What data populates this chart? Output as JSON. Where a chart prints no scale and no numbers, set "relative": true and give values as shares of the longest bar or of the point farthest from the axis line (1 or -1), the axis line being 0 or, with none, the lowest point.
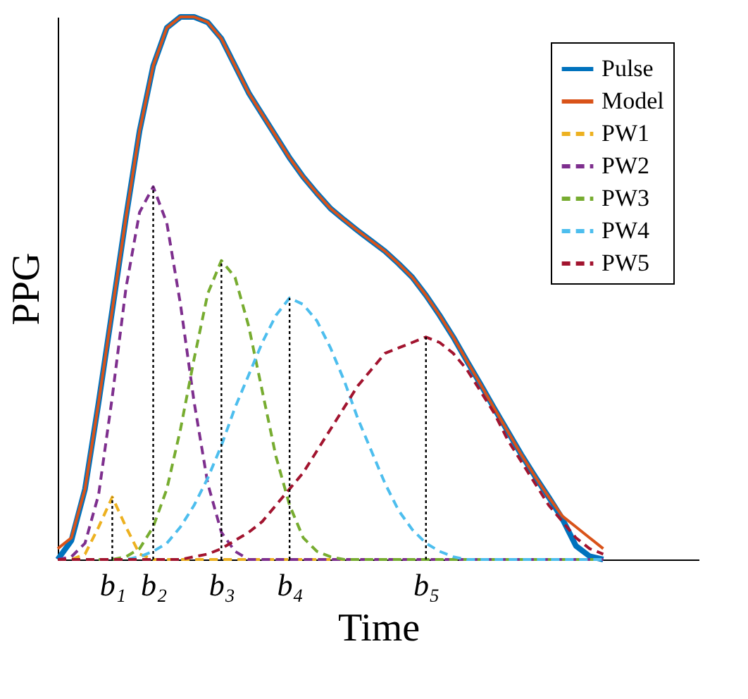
{
  "chart_data": {
    "type": "line",
    "xlabel": "Time",
    "ylabel": "PPG",
    "relative": true,
    "legend": "top right",
    "categories": [
      null,
      null,
      null,
      null,
      "b₁",
      null,
      null,
      "b₂",
      null,
      null,
      null,
      null,
      "b₃",
      null,
      null,
      null,
      null,
      "b₄",
      null,
      null,
      null,
      null,
      null,
      null,
      null,
      null,
      null,
      "b₅",
      null,
      null,
      null,
      null,
      null,
      null,
      null,
      null,
      null,
      null,
      null,
      null,
      null,
      null,
      null,
      null,
      null,
      null,
      null,
      null
    ],
    "series": [
      {
        "name": "Pulse",
        "color": "#0072bd",
        "line_style": "solid",
        "values": [
          0,
          0.035,
          0.13,
          0.29,
          0.46,
          0.63,
          0.79,
          0.91,
          0.98,
          1,
          1,
          0.99,
          0.96,
          0.91,
          0.86,
          0.82,
          0.78,
          0.74,
          0.705,
          0.675,
          0.647,
          0.626,
          0.606,
          0.587,
          0.568,
          0.545,
          0.52,
          0.487,
          0.45,
          0.41,
          0.366,
          0.323,
          0.279,
          0.236,
          0.193,
          0.153,
          0.115,
          0.075,
          0.025,
          0.006,
          0,
          null,
          null,
          null,
          null,
          null,
          null,
          null
        ]
      },
      {
        "name": "Model",
        "color": "#d95319",
        "line_style": "solid",
        "values": [
          0.02,
          0.04,
          0.13,
          0.29,
          0.46,
          0.63,
          0.79,
          0.91,
          0.98,
          1,
          1,
          0.99,
          0.96,
          0.91,
          0.86,
          0.82,
          0.78,
          0.74,
          0.705,
          0.675,
          0.647,
          0.626,
          0.606,
          0.587,
          0.568,
          0.545,
          0.52,
          0.487,
          0.45,
          0.41,
          0.366,
          0.323,
          0.279,
          0.236,
          0.193,
          0.153,
          0.115,
          0.08,
          0.06,
          0.04,
          0.02,
          null,
          null,
          null,
          null,
          null,
          null,
          null
        ]
      },
      {
        "name": "PW1",
        "color": "#edb120",
        "line_style": "dashed",
        "values": [
          0,
          0,
          0.01,
          0.06,
          0.115,
          0.06,
          0.01,
          0,
          0,
          0,
          0,
          0,
          0,
          0,
          0,
          0,
          0,
          0,
          0,
          0,
          0,
          0,
          0,
          0,
          null,
          null,
          null,
          null,
          null,
          null,
          null,
          null,
          null,
          null,
          null,
          null,
          null,
          null,
          null,
          null,
          null,
          null,
          null,
          null,
          null,
          null,
          null,
          null
        ]
      },
      {
        "name": "PW2",
        "color": "#7e2f8e",
        "line_style": "dashed",
        "values": [
          0,
          0.005,
          0.03,
          0.12,
          0.3,
          0.5,
          0.64,
          0.687,
          0.62,
          0.47,
          0.29,
          0.14,
          0.05,
          0.015,
          0,
          0,
          0,
          0,
          0,
          0,
          0,
          0,
          0,
          0,
          0,
          0,
          0,
          0,
          0,
          0,
          0,
          0,
          0,
          0,
          0,
          0,
          0,
          0,
          0,
          0,
          0,
          null,
          null,
          null,
          null,
          null,
          null,
          null
        ]
      },
      {
        "name": "PW3",
        "color": "#77ac30",
        "line_style": "dashed",
        "values": [
          null,
          null,
          null,
          0,
          0,
          0.005,
          0.02,
          0.06,
          0.13,
          0.24,
          0.37,
          0.49,
          0.551,
          0.52,
          0.43,
          0.31,
          0.19,
          0.1,
          0.04,
          0.015,
          0.005,
          0,
          0,
          0,
          0,
          0,
          0,
          0,
          0,
          0,
          0,
          0,
          0,
          0,
          0,
          0,
          0,
          0,
          0,
          0,
          0,
          null,
          null,
          null,
          null,
          null,
          null,
          null
        ]
      },
      {
        "name": "PW4",
        "color": "#4dbeee",
        "line_style": "dashed",
        "values": [
          0,
          0,
          0,
          0,
          0,
          0,
          0.005,
          0.015,
          0.03,
          0.06,
          0.1,
          0.15,
          0.21,
          0.28,
          0.34,
          0.4,
          0.45,
          0.482,
          0.47,
          0.44,
          0.39,
          0.33,
          0.26,
          0.2,
          0.14,
          0.09,
          0.055,
          0.03,
          0.015,
          0.005,
          0,
          0,
          0,
          0,
          0,
          0,
          0,
          0,
          0,
          0,
          0,
          null,
          null,
          null,
          null,
          null,
          null,
          null
        ]
      },
      {
        "name": "PW5",
        "color": "#a2142f",
        "line_style": "dashed",
        "values": [
          0,
          0,
          0,
          0,
          0,
          0,
          0,
          0,
          0,
          0,
          0.005,
          0.01,
          0.02,
          0.035,
          0.05,
          0.07,
          0.1,
          0.13,
          0.16,
          0.2,
          0.24,
          0.28,
          0.32,
          0.35,
          0.38,
          0.39,
          0.4,
          0.41,
          0.4,
          0.38,
          0.35,
          0.31,
          0.27,
          0.22,
          0.18,
          0.14,
          0.1,
          0.07,
          0.04,
          0.02,
          0.01,
          null,
          null,
          null,
          null,
          null,
          null,
          null
        ]
      }
    ],
    "ref_lines": [
      {
        "axis": "x",
        "value": "b₁",
        "color": "#000000",
        "line_style": "dotted"
      },
      {
        "axis": "x",
        "value": "b₂",
        "color": "#000000",
        "line_style": "dotted"
      },
      {
        "axis": "x",
        "value": "b₃",
        "color": "#000000",
        "line_style": "dotted"
      },
      {
        "axis": "x",
        "value": "b₄",
        "color": "#000000",
        "line_style": "dotted"
      },
      {
        "axis": "x",
        "value": "b₅",
        "color": "#000000",
        "line_style": "dotted"
      }
    ]
  }
}
